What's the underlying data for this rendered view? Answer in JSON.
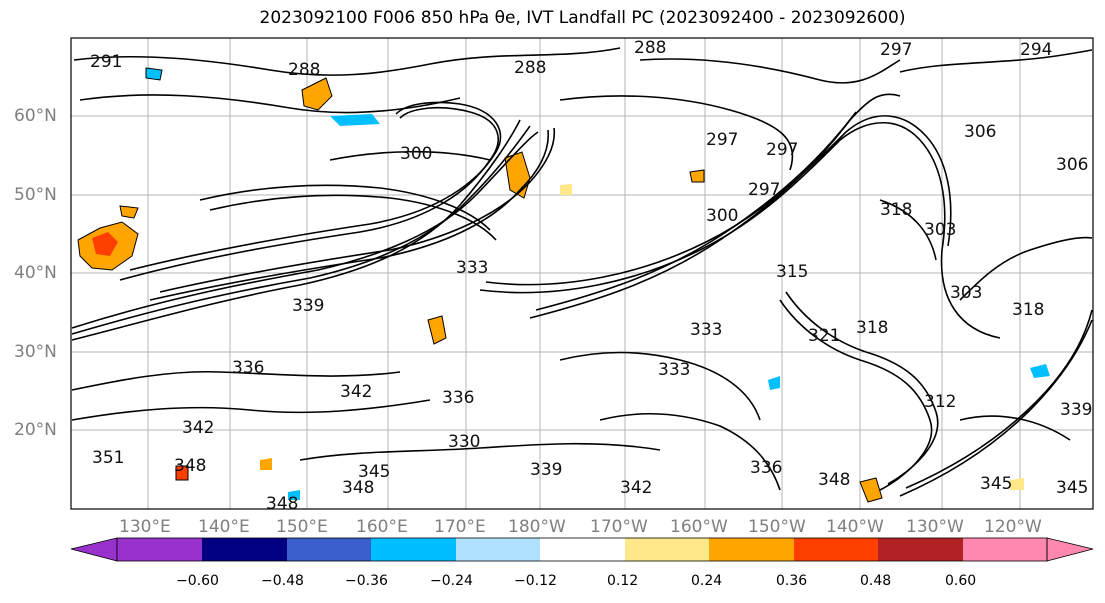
{
  "title": "2023092100 F006 850 hPa θe, IVT Landfall PC (2023092400 - 2023092600)",
  "lat_labels": [
    "60°N",
    "50°N",
    "40°N",
    "30°N",
    "20°N"
  ],
  "lon_labels": [
    "130°E",
    "140°E",
    "150°E",
    "160°E",
    "170°E",
    "180°W",
    "170°W",
    "160°W",
    "150°W",
    "140°W",
    "130°W",
    "120°W"
  ],
  "colorbar": {
    "colors": [
      "#9932cc",
      "#000080",
      "#3a5fcd",
      "#00bfff",
      "#b0e2ff",
      "#ffffff",
      "#ffe88a",
      "#ffa500",
      "#ff3f00",
      "#b22222",
      "#ff88b0"
    ],
    "ticks": [
      "−0.60",
      "−0.48",
      "−0.36",
      "−0.24",
      "−0.12",
      "0.12",
      "0.24",
      "0.36",
      "0.48",
      "0.60"
    ]
  },
  "contour_labels": [
    "291",
    "288",
    "288",
    "288",
    "297",
    "294",
    "306",
    "306",
    "303",
    "303",
    "300",
    "300",
    "297",
    "297",
    "297",
    "318",
    "339",
    "333",
    "333",
    "333",
    "336",
    "342",
    "348",
    "348",
    "345",
    "339",
    "342",
    "342",
    "345",
    "345",
    "348",
    "348",
    "351",
    "336",
    "336",
    "330",
    "315",
    "318",
    "321",
    "339",
    "312",
    "318"
  ]
}
